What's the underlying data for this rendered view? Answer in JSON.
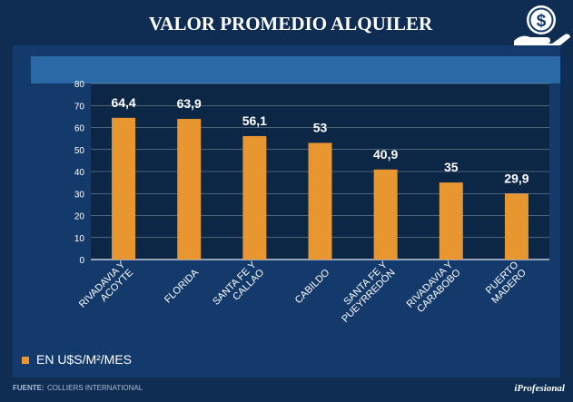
{
  "colors": {
    "background": "#0f2c52",
    "panel": "#133a6a",
    "plot_bg": "#0c2746",
    "header_band": "#2a68a6",
    "bar": "#e8962f",
    "text": "#ffffff",
    "footer_text": "#a9bfd8"
  },
  "title": "VALOR PROMEDIO ALQUILER",
  "logo_icon": "money-hand-icon",
  "chart_data": {
    "type": "bar",
    "title": "VALOR PROMEDIO ALQUILER",
    "xlabel": "",
    "ylabel": "",
    "ylim": [
      0,
      80
    ],
    "yticks": [
      0,
      10,
      20,
      30,
      40,
      50,
      60,
      70,
      80
    ],
    "grid": true,
    "legend_position": "bottom-left",
    "categories": [
      [
        "RIVADAVIA Y",
        "ACOYTE"
      ],
      [
        "FLORIDA"
      ],
      [
        "SANTA FE Y",
        "CALLAO"
      ],
      [
        "CABILDO"
      ],
      [
        "SANTA FE Y",
        "PUEYRREDÓN"
      ],
      [
        "RIVADAVIA Y",
        "CARABOBO"
      ],
      [
        "PUERTO",
        "MADERO"
      ]
    ],
    "values": [
      64.4,
      63.9,
      56.1,
      53,
      40.9,
      35,
      29.9
    ],
    "value_labels": [
      "64,4",
      "63,9",
      "56,1",
      "53",
      "40,9",
      "35",
      "29,9"
    ],
    "series": [
      {
        "name": "EN U$S/M²/MES",
        "values": [
          64.4,
          63.9,
          56.1,
          53,
          40.9,
          35,
          29.9
        ]
      }
    ]
  },
  "legend": {
    "label": "EN U$S/M²/MES"
  },
  "footer": {
    "source_label": "FUENTE:",
    "source_value": "COLLIERS INTERNATIONAL",
    "brand": "iProfesional"
  }
}
